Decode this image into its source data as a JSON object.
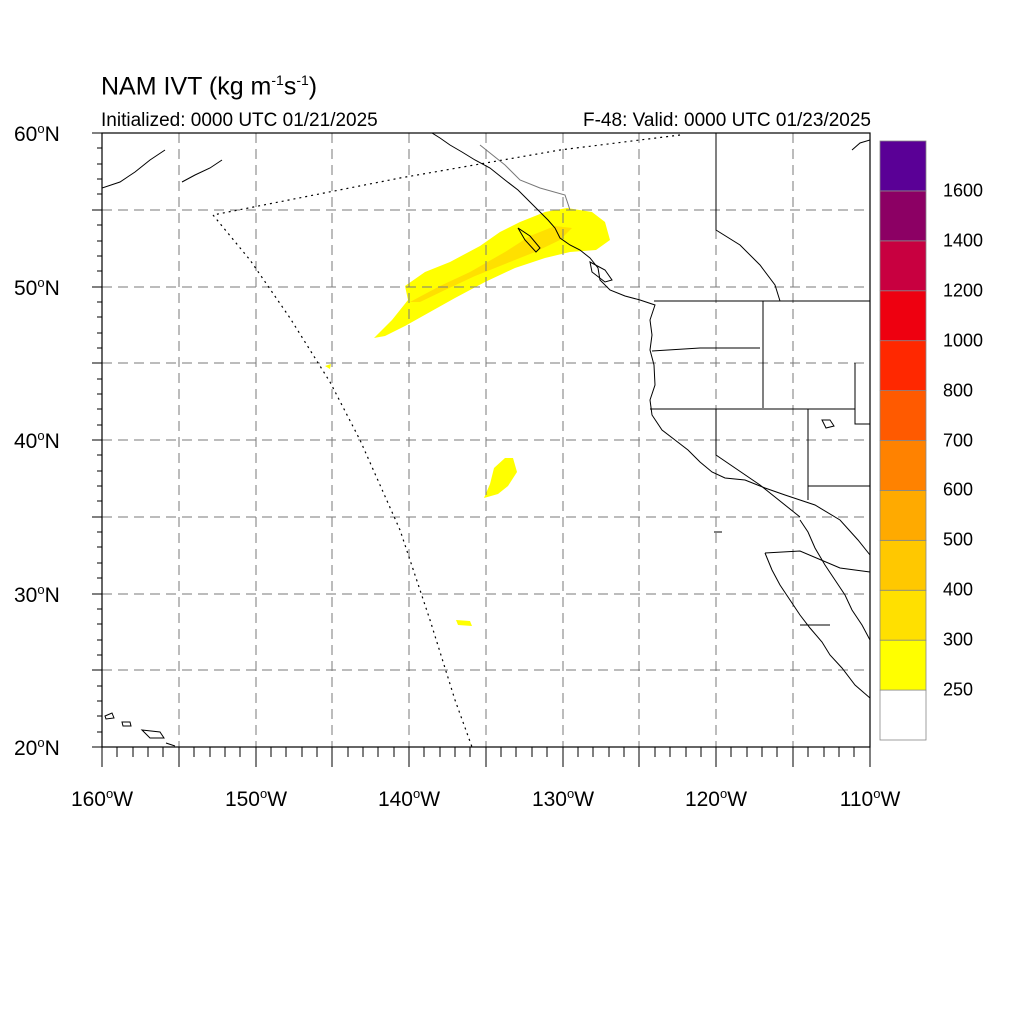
{
  "title": {
    "base": "NAM IVT (kg m",
    "exp1": "-1",
    "mid": "s",
    "exp2": "-1",
    "end": ")"
  },
  "subtitle_left": "Initialized: 0000 UTC 01/21/2025",
  "subtitle_right": "F-48: Valid: 0000 UTC 01/23/2025",
  "map": {
    "lon_range": [
      -160,
      -110
    ],
    "lat_range": [
      20,
      60
    ],
    "lat_labels": [
      {
        "deg": "60",
        "hemi": "N"
      },
      {
        "deg": "50",
        "hemi": "N"
      },
      {
        "deg": "40",
        "hemi": "N"
      },
      {
        "deg": "30",
        "hemi": "N"
      },
      {
        "deg": "20",
        "hemi": "N"
      }
    ],
    "lon_labels": [
      {
        "deg": "160",
        "hemi": "W"
      },
      {
        "deg": "150",
        "hemi": "W"
      },
      {
        "deg": "140",
        "hemi": "W"
      },
      {
        "deg": "130",
        "hemi": "W"
      },
      {
        "deg": "120",
        "hemi": "W"
      },
      {
        "deg": "110",
        "hemi": "W"
      }
    ],
    "grid_style": "dashed",
    "ivt_features": [
      {
        "name": "atmospheric-river-plume",
        "category": "250-300",
        "color": "#ffff00"
      },
      {
        "name": "plume-core",
        "category": "300-400",
        "color": "#ffe000"
      },
      {
        "name": "offshore-patch",
        "category": "250-300",
        "color": "#ffff00"
      }
    ]
  },
  "colorbar": {
    "labels": [
      "250",
      "300",
      "400",
      "500",
      "600",
      "700",
      "800",
      "1000",
      "1200",
      "1400",
      "1600"
    ],
    "colors": [
      "#ffffff",
      "#ffff00",
      "#ffe000",
      "#ffc800",
      "#ffaa00",
      "#ff8200",
      "#ff5a00",
      "#ff2800",
      "#ee0010",
      "#c80040",
      "#8c0064",
      "#5a0096"
    ]
  }
}
